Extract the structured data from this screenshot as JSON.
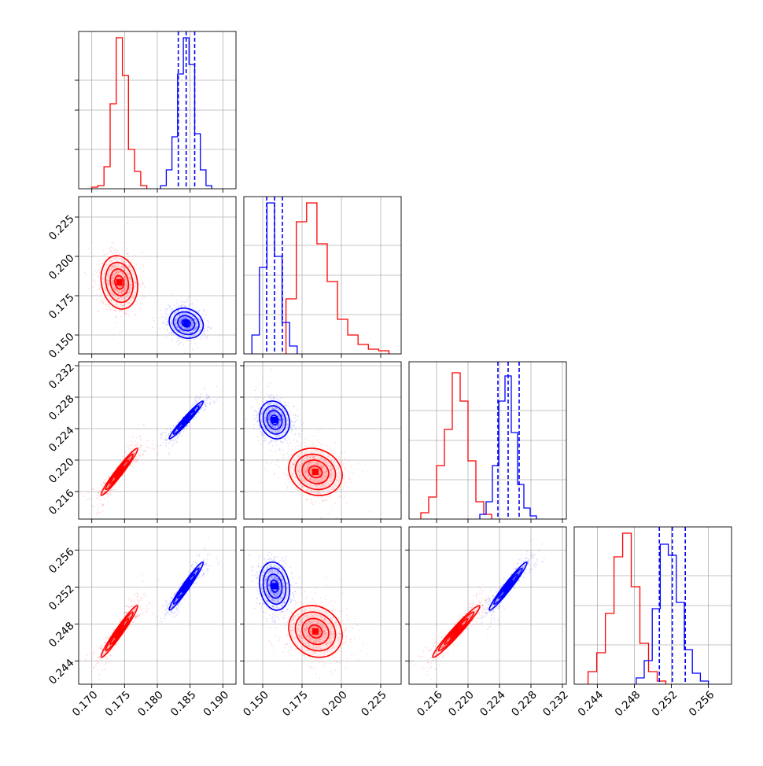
{
  "colors": {
    "series_red": "#ff0000",
    "series_blue": "#0000ff",
    "grid": "#b0b0b0"
  },
  "chart_data": {
    "type": "corner",
    "grid": true,
    "parameters": [
      "",
      "",
      "",
      ""
    ],
    "ranges": [
      [
        0.168,
        0.192
      ],
      [
        0.138,
        0.238
      ],
      [
        0.2125,
        0.2325
      ],
      [
        0.2415,
        0.2585
      ]
    ],
    "ticks": [
      [
        "0.170",
        "0.175",
        "0.180",
        "0.185",
        "0.190"
      ],
      [
        "0.150",
        "0.175",
        "0.200",
        "0.225"
      ],
      [
        "0.216",
        "0.220",
        "0.224",
        "0.228",
        "0.232"
      ],
      [
        "0.244",
        "0.248",
        "0.252",
        "0.256"
      ]
    ],
    "series": [
      {
        "name": "",
        "color": "red",
        "mean": [
          0.1742,
          0.1835,
          0.2185,
          0.2472
        ],
        "std": [
          0.0014,
          0.0085,
          0.0015,
          0.0014
        ],
        "hist_bin_counts": [
          [
            0.01,
            0.02,
            0.14,
            0.54,
            0.96,
            0.72,
            0.25,
            0.11,
            0.02
          ],
          [
            0.35,
            0.84,
            0.96,
            0.7,
            0.46,
            0.22,
            0.12,
            0.06,
            0.03,
            0.02
          ],
          [
            0.04,
            0.14,
            0.34,
            0.57,
            0.93,
            0.75,
            0.37,
            0.11,
            0.03
          ],
          [
            0.08,
            0.2,
            0.45,
            0.81,
            0.96,
            0.62,
            0.26,
            0.08,
            0.02
          ]
        ]
      },
      {
        "name": "",
        "color": "blue",
        "mean": [
          0.1844,
          0.1575,
          0.2251,
          0.2521
        ],
        "std": [
          0.0013,
          0.0048,
          0.0012,
          0.0013
        ],
        "quantiles": [
          [
            0.1832,
            0.1844,
            0.1857
          ],
          [
            0.1525,
            0.1575,
            0.1625
          ],
          [
            0.2238,
            0.2251,
            0.2265
          ],
          [
            0.2507,
            0.2521,
            0.2535
          ]
        ],
        "hist_bin_counts": [
          [
            0.02,
            0.12,
            0.33,
            0.73,
            0.96,
            0.79,
            0.35,
            0.12,
            0.02
          ],
          [
            0.12,
            0.55,
            0.96,
            0.62,
            0.2,
            0.05
          ],
          [
            0.03,
            0.11,
            0.34,
            0.75,
            0.91,
            0.55,
            0.22,
            0.07,
            0.02
          ],
          [
            0.04,
            0.15,
            0.48,
            0.89,
            0.82,
            0.52,
            0.22,
            0.07,
            0.02
          ]
        ]
      }
    ]
  }
}
